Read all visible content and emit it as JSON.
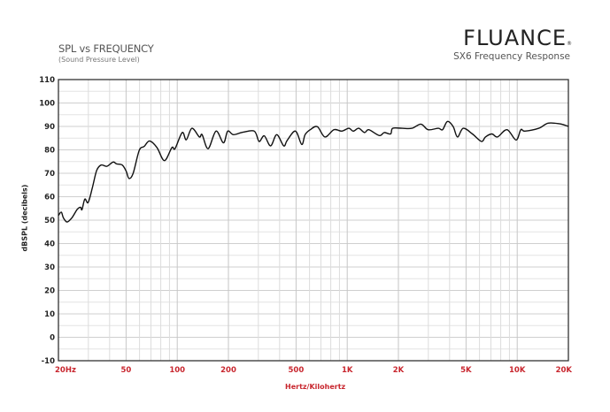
{
  "header": {
    "title": "SPL vs FREQUENCY",
    "subtitle": "(Sound Pressure Level)",
    "brand": "FLUANCE",
    "model_title": "SX6 Frequency Response"
  },
  "chart_data": {
    "type": "line",
    "title": "SPL vs FREQUENCY",
    "subtitle": "(Sound Pressure Level)",
    "xlabel": "Hertz/Kilohertz",
    "ylabel": "dBSPL (decibels)",
    "x_scale": "log",
    "xlim": [
      20,
      20000
    ],
    "ylim": [
      -10,
      110
    ],
    "grid": true,
    "line_color": "#111111",
    "tick_label_color_x": "#c8262e",
    "x_ticks": [
      {
        "value": 20,
        "label": "20Hz"
      },
      {
        "value": 50,
        "label": "50"
      },
      {
        "value": 100,
        "label": "100"
      },
      {
        "value": 200,
        "label": "200"
      },
      {
        "value": 500,
        "label": "500"
      },
      {
        "value": 1000,
        "label": "1K"
      },
      {
        "value": 2000,
        "label": "2K"
      },
      {
        "value": 5000,
        "label": "5K"
      },
      {
        "value": 10000,
        "label": "10K"
      },
      {
        "value": 20000,
        "label": "20K"
      }
    ],
    "y_ticks": [
      110,
      100,
      90,
      80,
      70,
      60,
      50,
      40,
      30,
      20,
      10,
      0,
      -10
    ],
    "series": [
      {
        "x": [
          20,
          20.8,
          21.4,
          22.5,
          24,
          25.8,
          27,
          27.5,
          28.6,
          29.9,
          31.6,
          33.5,
          35.6,
          38.6,
          41.9,
          44,
          47.5,
          50,
          52,
          55,
          59.8,
          64,
          68.7,
          76,
          84,
          93,
          97,
          107,
          113,
          122,
          135,
          140,
          152,
          169,
          187,
          198,
          214,
          243,
          284,
          303,
          325,
          354,
          385,
          423,
          443,
          496,
          540,
          565,
          606,
          667,
          739,
          835,
          930,
          1022,
          1085,
          1168,
          1263,
          1340,
          1545,
          1650,
          1800,
          1850,
          2100,
          2400,
          2713,
          2990,
          3430,
          3640,
          3880,
          4200,
          4450,
          4810,
          5450,
          6165,
          6500,
          7100,
          7650,
          8710,
          9850,
          10500,
          11100,
          13400,
          15200,
          17800,
          19700,
          20000
        ],
        "y": [
          52,
          53.4,
          51,
          49.2,
          51,
          54.6,
          55.5,
          54.5,
          59,
          57.5,
          63.5,
          71,
          73.5,
          73,
          74.8,
          74,
          73.5,
          71,
          67.8,
          70,
          79.8,
          81.5,
          83.8,
          81,
          75.4,
          81,
          80.5,
          87.4,
          84.3,
          89.2,
          85.5,
          86.5,
          80.5,
          88,
          83,
          88,
          86.5,
          87.5,
          88,
          83.6,
          86,
          81.7,
          86.5,
          81.7,
          84,
          88,
          82.3,
          86.5,
          88.6,
          89.9,
          85.5,
          88.6,
          88,
          89.2,
          88,
          89.2,
          87.4,
          88.6,
          86.1,
          87.4,
          86.8,
          89.2,
          89.2,
          89.2,
          91,
          88.6,
          89.2,
          88.6,
          92.1,
          89.9,
          85.5,
          89.2,
          86.8,
          83.6,
          85.5,
          86.8,
          85.5,
          88.6,
          84.2,
          88.6,
          88,
          89.2,
          91.4,
          91.1,
          90.2,
          90
        ]
      }
    ]
  }
}
